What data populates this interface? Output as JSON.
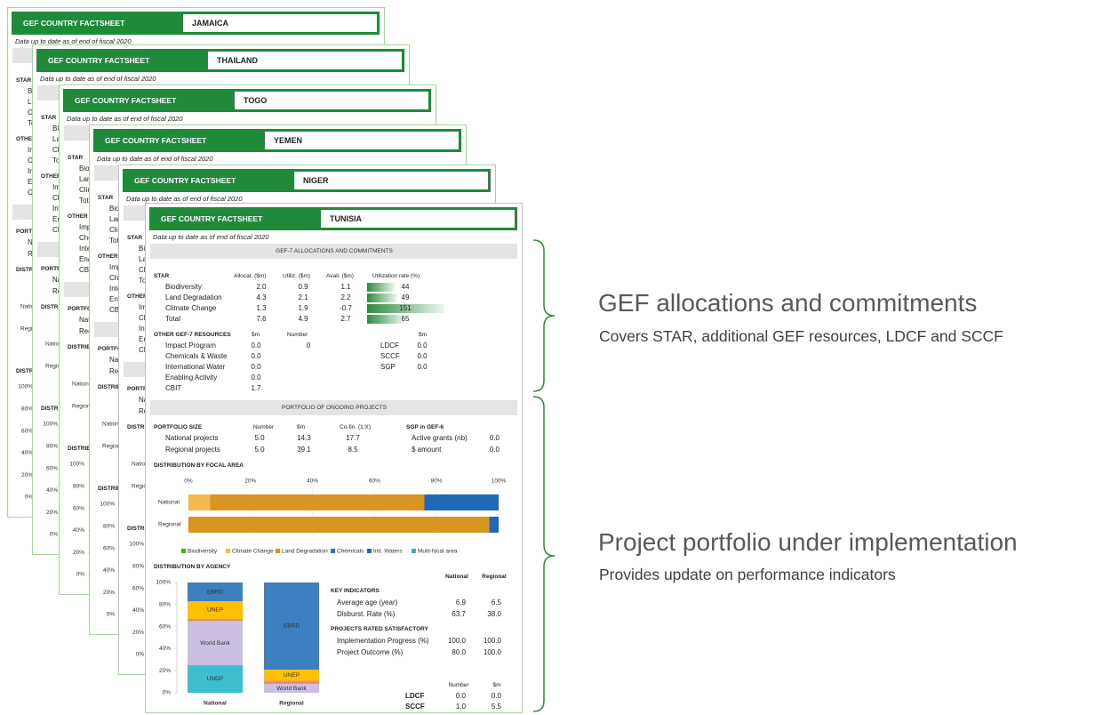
{
  "factsheet": {
    "label": "GEF COUNTRY FACTSHEET",
    "date_note": "Data up to date as of end of fiscal 2020",
    "countries": [
      "JAMAICA",
      "THAILAND",
      "TOGO",
      "YEMEN",
      "NIGER",
      "TUNISIA"
    ]
  },
  "allocations": {
    "title": "GEF-7 ALLOCATIONS AND COMMITMENTS",
    "columns": [
      "STAR",
      "Allocat. ($m)",
      "Utiliz. ($m)",
      "Avail. ($m)",
      "Utilization rate (%)"
    ],
    "rate_color": "#2e8b3e",
    "rows": [
      {
        "label": "Biodiversity",
        "values": [
          "2.0",
          "0.9",
          "1.1"
        ],
        "rate": 44
      },
      {
        "label": "Land Degradation",
        "values": [
          "4.3",
          "2.1",
          "2.2"
        ],
        "rate": 49
      },
      {
        "label": "Climate Change",
        "values": [
          "1.3",
          "1.9",
          "-0.7"
        ],
        "rate": 151
      },
      {
        "label": "Total",
        "values": [
          "7.6",
          "4.9",
          "2.7"
        ],
        "rate": 65
      }
    ]
  },
  "other_resources": {
    "columns": [
      "OTHER GEF-7 RESOURCES",
      "$m",
      "Number"
    ],
    "rows": [
      [
        "Impact Program",
        "0.0",
        "0"
      ],
      [
        "Chemicals & Waste",
        "0.0"
      ],
      [
        "International Water",
        "0.0"
      ],
      [
        "Enabling Activity",
        "0.0"
      ],
      [
        "CBIT",
        "1.7"
      ]
    ],
    "funds_header": "$m",
    "funds": [
      [
        "LDCF",
        "0.0"
      ],
      [
        "SCCF",
        "0.0"
      ],
      [
        "SGP",
        "0.0"
      ]
    ]
  },
  "portfolio": {
    "title": "PORTFOLIO OF ONGOING PROJECTS",
    "columns": [
      "PORTFOLIO SIZE",
      "Number",
      "$m",
      "Co-fin. (1:X)"
    ],
    "rows": [
      [
        "National projects",
        "5.0",
        "14.3",
        "17.7"
      ],
      [
        "Regional projects",
        "5.0",
        "39.1",
        "8.5"
      ]
    ],
    "sgp_title": "SGP in GEF-6",
    "sgp_rows": [
      [
        "Active grants (nb)",
        "0.0"
      ],
      [
        "$ amount",
        "0.0"
      ]
    ]
  },
  "chart_data": [
    {
      "type": "bar",
      "orientation": "horizontal",
      "stacked": true,
      "title": "DISTRIBUTION BY FOCAL AREA",
      "categories": [
        "National",
        "Regional"
      ],
      "xlim": [
        0,
        100
      ],
      "xticks": [
        {
          "value": 0,
          "label": "0%"
        },
        {
          "value": 20,
          "label": "20%"
        },
        {
          "value": 40,
          "label": "40%"
        },
        {
          "value": 60,
          "label": "60%"
        },
        {
          "value": 80,
          "label": "80%"
        },
        {
          "value": 100,
          "label": "100%"
        }
      ],
      "series": [
        {
          "name": "Biodiversity",
          "color": "#4ea72e",
          "values": [
            0,
            0
          ]
        },
        {
          "name": "Climate Change",
          "color": "#f5b850",
          "values": [
            7,
            0
          ]
        },
        {
          "name": "Land Degradation",
          "color": "#d8951f",
          "values": [
            69,
            97
          ]
        },
        {
          "name": "Chemicals",
          "color": "#2f75b5",
          "values": [
            0,
            0
          ]
        },
        {
          "name": "Intl. Waters",
          "color": "#2168b8",
          "values": [
            24,
            3
          ]
        },
        {
          "name": "Multi-focal area",
          "color": "#3cb0b8",
          "values": [
            0,
            0
          ]
        }
      ]
    },
    {
      "type": "bar",
      "orientation": "vertical",
      "stacked": true,
      "title": "DISTRIBUTION BY AGENCY",
      "categories": [
        "National",
        "Regional"
      ],
      "ylim": [
        0,
        100
      ],
      "yticks": [
        {
          "value": 0,
          "label": "0%"
        },
        {
          "value": 20,
          "label": "20%"
        },
        {
          "value": 40,
          "label": "40%"
        },
        {
          "value": 60,
          "label": "60%"
        },
        {
          "value": 80,
          "label": "80%"
        },
        {
          "value": 100,
          "label": "100%"
        }
      ],
      "series": [
        {
          "name": "UNDP",
          "color": "#3dbfcf",
          "values": [
            25,
            0
          ]
        },
        {
          "name": "World Bank",
          "color": "#cbc0e4",
          "values": [
            40,
            8
          ]
        },
        {
          "name": "UNIDO",
          "color": "#f08a6a",
          "values": [
            2,
            3
          ]
        },
        {
          "name": "UNEP",
          "color": "#ffc000",
          "values": [
            16,
            10
          ]
        },
        {
          "name": "EBRD",
          "color": "#3d7fbf",
          "values": [
            17,
            79
          ]
        }
      ]
    }
  ],
  "indicators": {
    "columns": [
      "National",
      "Regional"
    ],
    "title": "KEY INDICATORS",
    "rows": [
      [
        "Average age (year)",
        "6.9",
        "6.5"
      ],
      [
        "Disburst. Rate (%)",
        "63.7",
        "38.0"
      ]
    ],
    "satisfactory_title": "PROJECTS RATED SATISFACTORY",
    "satisfactory_rows": [
      [
        "Implementation Progress (%)",
        "100.0",
        "100.0"
      ],
      [
        "Project Outcome (%)",
        "80.0",
        "100.0"
      ]
    ]
  },
  "funds": {
    "columns": [
      "Number",
      "$m"
    ],
    "rows": [
      [
        "LDCF",
        "0.0",
        "0.0"
      ],
      [
        "SCCF",
        "1.0",
        "5.5"
      ]
    ]
  },
  "callouts": [
    {
      "title": "GEF allocations and commitments",
      "subtitle": "Covers STAR, additional GEF resources, LDCF and SCCF"
    },
    {
      "title": "Project portfolio under implementation",
      "subtitle": "Provides update on performance indicators"
    }
  ]
}
